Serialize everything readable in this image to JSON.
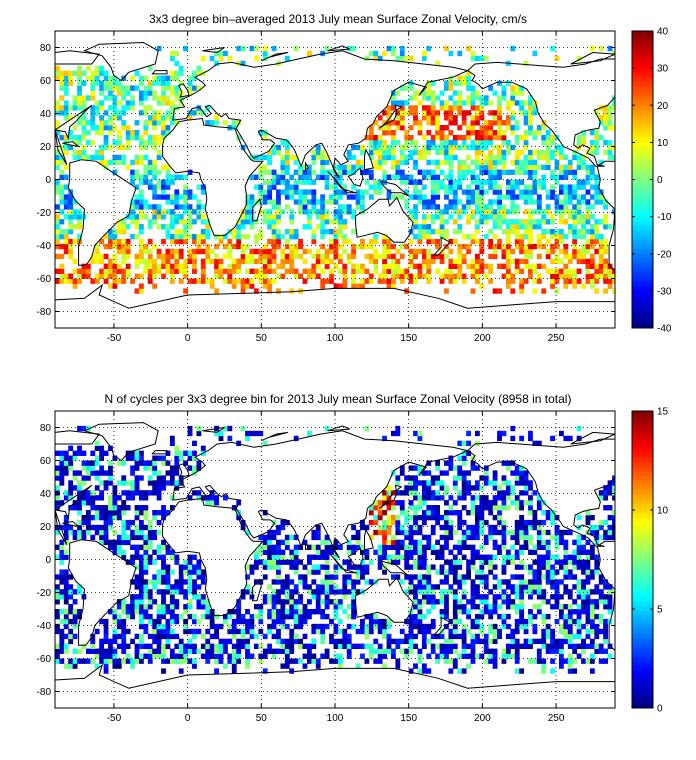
{
  "chart_data": [
    {
      "type": "heatmap",
      "title": "3x3 degree bin–averaged 2013 July mean Surface Zonal Velocity, cm/s",
      "xlim": [
        -90,
        290
      ],
      "ylim": [
        -90,
        90
      ],
      "x_ticks": [
        -50,
        0,
        50,
        100,
        150,
        200,
        250
      ],
      "y_ticks": [
        -80,
        -60,
        -40,
        -20,
        0,
        20,
        40,
        60,
        80
      ],
      "grid": true,
      "bin_size_deg": 3,
      "colorbar": {
        "range": [
          -40,
          40
        ],
        "ticks": [
          40,
          30,
          20,
          10,
          0,
          -10,
          -20,
          -30,
          -40
        ],
        "colormap": "jet"
      },
      "coastlines": true,
      "values_description": "zonal velocity per 3x3 bin"
    },
    {
      "type": "heatmap",
      "title": "N of cycles per 3x3 degree bin for 2013 July mean Surface Zonal Velocity (8958 in total)",
      "xlim": [
        -90,
        290
      ],
      "ylim": [
        -90,
        90
      ],
      "x_ticks": [
        -50,
        0,
        50,
        100,
        150,
        200,
        250
      ],
      "y_ticks": [
        -80,
        -60,
        -40,
        -20,
        0,
        20,
        40,
        60,
        80
      ],
      "grid": true,
      "bin_size_deg": 3,
      "colorbar": {
        "range": [
          0,
          15
        ],
        "ticks": [
          15,
          10,
          5,
          0
        ],
        "colormap": "jet"
      },
      "coastlines": true,
      "values_description": "count of cycles per 3x3 bin"
    }
  ]
}
